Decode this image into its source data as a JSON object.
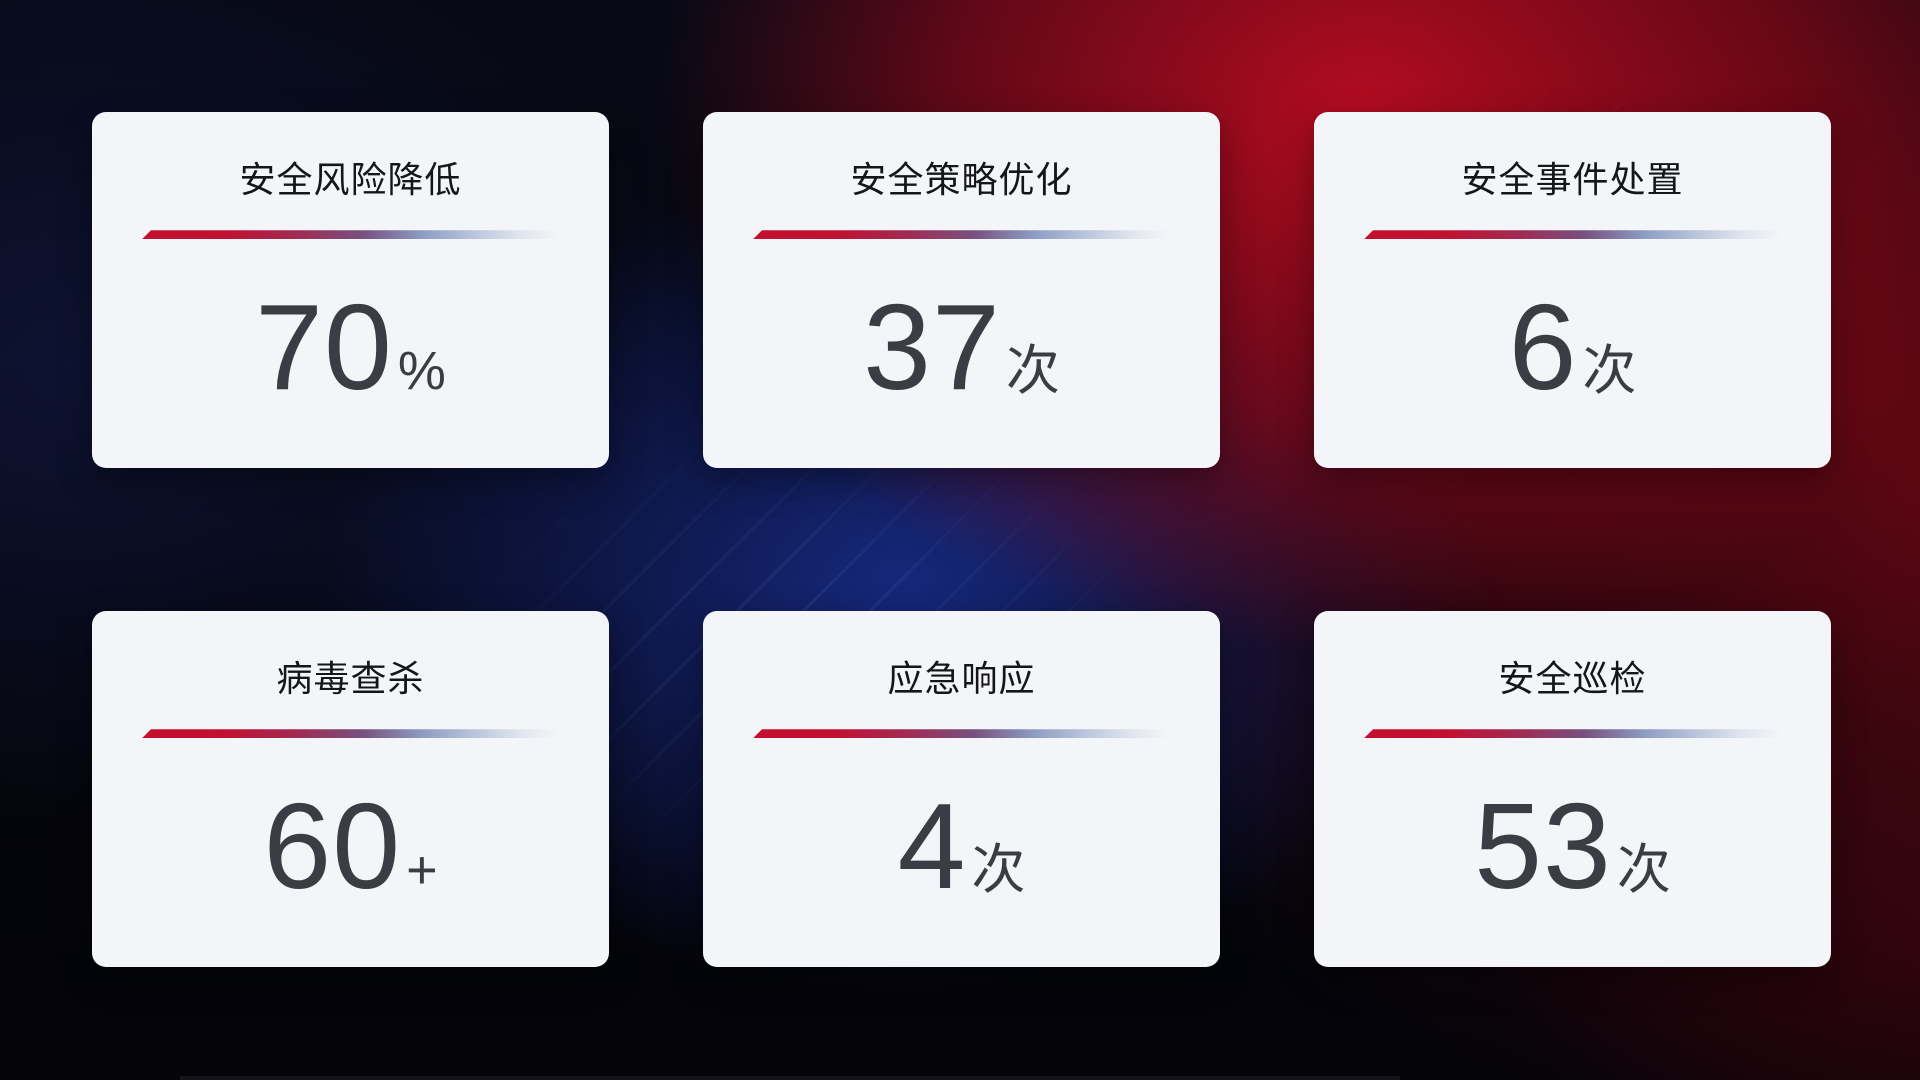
{
  "cards": [
    {
      "title": "安全风险降低",
      "value": "70",
      "unit": "%"
    },
    {
      "title": "安全策略优化",
      "value": "37",
      "unit": "次"
    },
    {
      "title": "安全事件处置",
      "value": "6",
      "unit": "次"
    },
    {
      "title": "病毒查杀",
      "value": "60",
      "unit": "+"
    },
    {
      "title": "应急响应",
      "value": "4",
      "unit": "次"
    },
    {
      "title": "安全巡检",
      "value": "53",
      "unit": "次"
    }
  ],
  "colors": {
    "card_background": "#f4f5f8",
    "title_text": "#15161a",
    "value_text": "#3a3d43",
    "divider_red": "#c40f2e",
    "divider_steel_blue": "#bcc8dd",
    "background_red": "#b30f1e",
    "background_blue": "#182b87",
    "background_base": "#05060d"
  }
}
